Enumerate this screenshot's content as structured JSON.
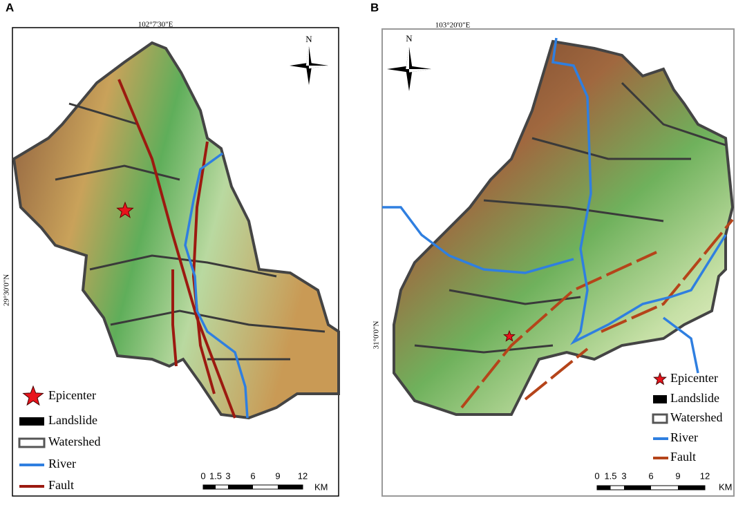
{
  "panels": [
    {
      "label": "A",
      "lon_label": "102°7'30\"E",
      "lat_label": "29°30'0\"N",
      "north": "N",
      "legend": [
        "Epicenter",
        "Landslide",
        "Watershed",
        "River",
        "Fault"
      ],
      "scale": {
        "ticks": [
          0,
          1.5,
          3,
          6,
          9,
          12
        ],
        "unit": "KM"
      }
    },
    {
      "label": "B",
      "lon_label": "103°20'0\"E",
      "lat_label": "31°0'0\"N",
      "north": "N",
      "legend": [
        "Epicenter",
        "Landslide",
        "Watershed",
        "River",
        "Fault"
      ],
      "scale": {
        "ticks": [
          0,
          1.5,
          3,
          6,
          9,
          12
        ],
        "unit": "KM"
      }
    }
  ]
}
